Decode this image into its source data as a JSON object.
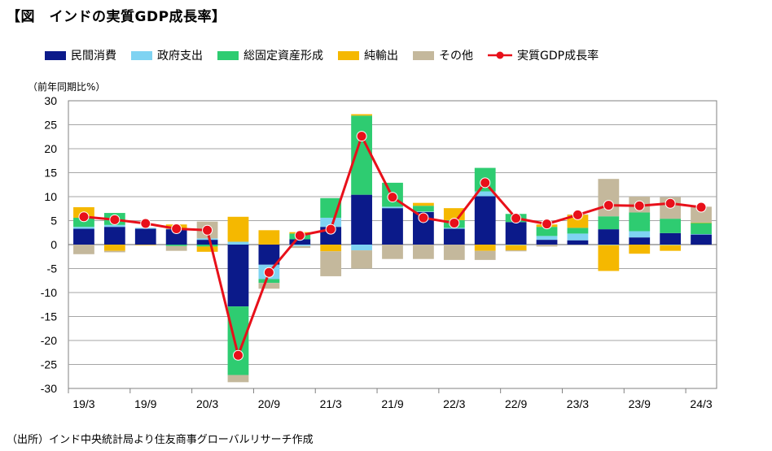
{
  "title": "【図　インドの実質GDP成長率】",
  "unit_label": "（前年同期比%）",
  "source": "（出所）インド中央統計局より住友商事グローバルリサーチ作成",
  "chart_data": {
    "type": "bar",
    "stacked": true,
    "ylim": [
      -30,
      30
    ],
    "yticks": [
      30,
      25,
      20,
      15,
      10,
      5,
      0,
      -5,
      -10,
      -15,
      -20,
      -25,
      -30
    ],
    "xtick_labels": [
      "19/3",
      "19/9",
      "20/3",
      "20/9",
      "21/3",
      "21/9",
      "22/3",
      "22/9",
      "23/3",
      "23/9",
      "24/3"
    ],
    "grid": "horizontal",
    "legend_position": "top",
    "categories": [
      "19/3",
      "19/6",
      "19/9",
      "19/12",
      "20/3",
      "20/6",
      "20/9",
      "20/12",
      "21/3",
      "21/6",
      "21/9",
      "21/12",
      "22/3",
      "22/6",
      "22/9",
      "22/12",
      "23/3",
      "23/6",
      "23/9",
      "23/12",
      "24/3"
    ],
    "series": [
      {
        "name": "民間消費",
        "color": "#0b1a8a",
        "values": [
          3.3,
          3.7,
          3.3,
          3.2,
          1.0,
          -12.9,
          -4.2,
          1.1,
          3.7,
          10.4,
          7.6,
          6.8,
          3.3,
          10.1,
          4.7,
          1.0,
          0.9,
          3.2,
          1.5,
          2.4,
          2.1
        ]
      },
      {
        "name": "政府支出",
        "color": "#7fd3f2",
        "values": [
          0.4,
          0.4,
          0.2,
          0.1,
          0.3,
          0.6,
          -3.0,
          -0.3,
          1.9,
          -1.2,
          0.3,
          0.1,
          0.2,
          1.0,
          -0.1,
          0.8,
          1.4,
          -0.1,
          1.3,
          -0.1,
          0.1
        ]
      },
      {
        "name": "総固定資産形成",
        "color": "#2ecc71",
        "values": [
          1.9,
          2.5,
          0.0,
          -0.3,
          -0.4,
          -14.3,
          -0.8,
          1.2,
          4.1,
          16.5,
          5.0,
          1.2,
          1.6,
          4.9,
          1.7,
          1.9,
          1.2,
          2.7,
          3.9,
          3.0,
          2.3
        ]
      },
      {
        "name": "純輸出",
        "color": "#f5b800",
        "values": [
          2.2,
          -1.3,
          -0.1,
          0.9,
          -1.1,
          5.2,
          3.0,
          0.3,
          -1.4,
          0.3,
          0.0,
          0.6,
          2.5,
          -1.3,
          -1.1,
          0.5,
          2.7,
          -5.4,
          -1.9,
          -1.2,
          0.1
        ]
      },
      {
        "name": "その他",
        "color": "#c4b89c",
        "values": [
          -2.0,
          -0.3,
          -0.1,
          -1.0,
          3.5,
          -1.5,
          -1.2,
          -0.4,
          -5.2,
          -3.8,
          -3.0,
          -3.0,
          -3.2,
          -1.9,
          -0.2,
          -0.4,
          0.1,
          7.8,
          3.3,
          4.5,
          3.3
        ]
      }
    ],
    "line_series": {
      "name": "実質GDP成長率",
      "color": "#e8101a",
      "values": [
        5.8,
        5.2,
        4.4,
        3.3,
        3.0,
        -23.1,
        -5.8,
        1.9,
        3.2,
        22.6,
        9.9,
        5.6,
        4.5,
        12.9,
        5.5,
        4.3,
        6.2,
        8.2,
        8.1,
        8.6,
        7.8
      ]
    }
  }
}
